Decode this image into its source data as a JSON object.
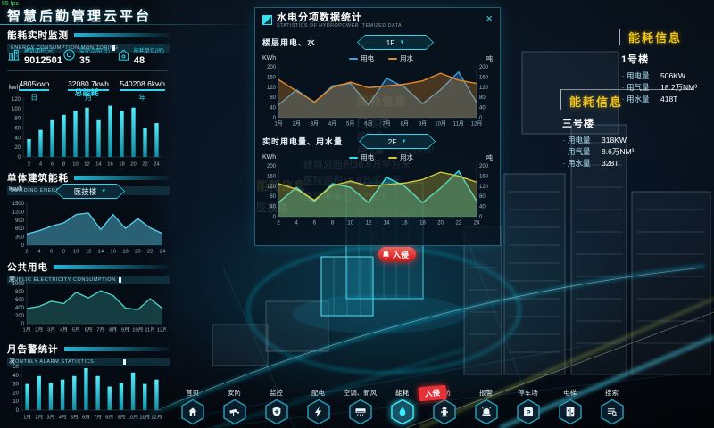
{
  "meta": {
    "fps": "55 fps",
    "title": "智慧后勤管理云平台"
  },
  "left": {
    "monitor_title": "能耗实时监测",
    "monitor_sub": "ENERGY CONSUMPTION MONITORING",
    "stats": [
      {
        "icon": "building-area-icon",
        "label": "建筑面积(㎡)",
        "value": "9012501"
      },
      {
        "icon": "monitor-points-icon",
        "label": "监控点用(台)",
        "value": "35"
      },
      {
        "icon": "energy-units-icon",
        "label": "能耗单位(间)",
        "value": "48"
      }
    ],
    "totals": [
      {
        "value": "4805kwh",
        "period": "日"
      },
      {
        "value": "32080.7kwh",
        "period": "月"
      },
      {
        "value": "540208.6kwh",
        "period": "年"
      }
    ],
    "total_energy_title": "总能耗",
    "total_energy_unit": "kwh",
    "building_title": "单体建筑能耗",
    "building_sub": "BUILDING ENERGY CONSUMPTION",
    "building_unit": "Kw/h",
    "building_select": "医技楼",
    "public_title": "公共用电",
    "public_sub": "PUBLIC ELECTRICITY CONSUMPTION",
    "public_unit": "度",
    "alarm_title": "月告警统计",
    "alarm_sub": "MONTHLY ALARM STATISTICS",
    "alarm_unit": "次"
  },
  "modal": {
    "title": "水电分项数据统计",
    "subtitle": "STATISTICS OF HYDROPOWER ITEMIZED DATA",
    "close": "×",
    "section1": {
      "label": "楼层用电、水",
      "select": "1F",
      "unit_left": "KWh",
      "unit_right": "吨"
    },
    "section2": {
      "label": "实时用电量、用水量",
      "select": "2F",
      "unit_left": "KWh",
      "unit_right": "吨"
    }
  },
  "right_panels": [
    {
      "title": "能耗信息",
      "building": "1号楼",
      "rows": [
        {
          "label": "用电量",
          "value": "506KW"
        },
        {
          "label": "用气量",
          "value": "18.2万NM³"
        },
        {
          "label": "用水量",
          "value": "418T"
        }
      ]
    },
    {
      "title": "能耗信息",
      "building": "三号楼",
      "rows": [
        {
          "label": "用电量",
          "value": "318KW"
        },
        {
          "label": "用气量",
          "value": "8.6万NM³"
        },
        {
          "label": "用水量",
          "value": "328T"
        }
      ]
    }
  ],
  "scene": {
    "intrusion_button": "入侵",
    "ghost_labels": [
      {
        "title": "能耗信息",
        "name": "门诊楼",
        "rows": [
          [
            "用电量",
            "525KW"
          ],
          [
            "用气量",
            "21万NM³"
          ]
        ]
      },
      {
        "lines": [
          "建筑总面积36.6万平方米",
          "医院面积18.9万平方米",
          "室外停车位：210个"
        ]
      },
      {
        "title": "能耗信息",
        "name": "医技楼"
      }
    ]
  },
  "nav": {
    "alert_badge": "入侵",
    "items": [
      {
        "label": "首页",
        "icon": "home-icon"
      },
      {
        "label": "安防",
        "icon": "camera-icon"
      },
      {
        "label": "监控",
        "icon": "shield-icon"
      },
      {
        "label": "配电",
        "icon": "bolt-icon"
      },
      {
        "label": "空调、新风",
        "icon": "ac-icon"
      },
      {
        "label": "能耗",
        "icon": "water-drop-icon",
        "active": true
      },
      {
        "label": "消防",
        "icon": "hydrant-icon"
      },
      {
        "label": "报警",
        "icon": "alarm-icon"
      },
      {
        "label": "停车场",
        "icon": "parking-icon"
      },
      {
        "label": "电梯",
        "icon": "elevator-icon"
      },
      {
        "label": "搜索",
        "icon": "search-icon"
      }
    ]
  },
  "colors": {
    "accent": "#2fd8f0",
    "bar_top": "#52eefc",
    "bar_bottom": "#128aa0",
    "blue": "#3fa0e0",
    "orange": "#e08a2a",
    "cyan": "#30e0e6",
    "yellow_line": "#d4c83a",
    "panel_title": "#f0c419",
    "alert": "#e53238"
  },
  "chart_data": [
    {
      "id": "total_energy",
      "type": "bar",
      "title": "总能耗",
      "ylabel": "kwh",
      "ylim": [
        0,
        120
      ],
      "yticks": [
        0,
        20,
        40,
        60,
        80,
        100,
        120
      ],
      "categories": [
        "2",
        "4",
        "6",
        "8",
        "10",
        "12",
        "14",
        "16",
        "18",
        "20",
        "22",
        "24"
      ],
      "values": [
        37,
        56,
        76,
        87,
        96,
        102,
        76,
        106,
        96,
        102,
        60,
        70
      ]
    },
    {
      "id": "building_energy",
      "type": "area",
      "title": "单体建筑能耗",
      "ylabel": "Kw/h",
      "selected_building": "医技楼",
      "ylim": [
        0,
        1500
      ],
      "yticks": [
        0,
        300,
        600,
        900,
        1200,
        1500
      ],
      "categories": [
        "2",
        "4",
        "6",
        "8",
        "10",
        "12",
        "14",
        "16",
        "18",
        "20",
        "22",
        "24"
      ],
      "values": [
        400,
        520,
        680,
        800,
        1100,
        1150,
        560,
        1100,
        600,
        950,
        620,
        420
      ],
      "color": "#56c8e8",
      "fill_opacity": 0.45
    },
    {
      "id": "public_power",
      "type": "area",
      "title": "公共用电",
      "ylabel": "度",
      "ylim": [
        0,
        1000
      ],
      "yticks": [
        0,
        200,
        400,
        600,
        800,
        1000
      ],
      "categories": [
        "1月",
        "2月",
        "3月",
        "4月",
        "5月",
        "6月",
        "7月",
        "8月",
        "9月",
        "10月",
        "11月",
        "12月"
      ],
      "values": [
        380,
        430,
        560,
        500,
        780,
        640,
        820,
        700,
        390,
        350,
        620,
        380
      ],
      "color": "#49d0c8",
      "fill_opacity": 0.25
    },
    {
      "id": "monthly_alarms",
      "type": "bar",
      "title": "月告警统计",
      "ylabel": "次",
      "ylim": [
        0,
        50
      ],
      "yticks": [
        0,
        10,
        20,
        30,
        40,
        50
      ],
      "categories": [
        "1月",
        "2月",
        "3月",
        "4月",
        "5月",
        "6月",
        "7月",
        "8月",
        "9月",
        "10月",
        "11月",
        "12月"
      ],
      "values": [
        30,
        39,
        31,
        35,
        39,
        48,
        39,
        27,
        31,
        43,
        30,
        35
      ]
    },
    {
      "id": "floor_usage",
      "type": "line",
      "title": "楼层用电、水",
      "selected_floor": "1F",
      "ylabel": "KWh",
      "y2label": "吨",
      "right_axis": true,
      "ylim": [
        0,
        200
      ],
      "yticks": [
        0,
        40,
        80,
        120,
        160,
        200
      ],
      "categories": [
        "1月",
        "2月",
        "3月",
        "4月",
        "5月",
        "6月",
        "7月",
        "8月",
        "9月",
        "10月",
        "11月",
        "12月"
      ],
      "series": [
        {
          "name": "用电",
          "color": "#3fa0e0",
          "values": [
            50,
            110,
            60,
            125,
            135,
            50,
            155,
            120,
            55,
            110,
            180,
            60
          ]
        },
        {
          "name": "用水",
          "color": "#e08a2a",
          "values": [
            150,
            105,
            62,
            120,
            140,
            118,
            125,
            132,
            145,
            175,
            148,
            135
          ]
        }
      ]
    },
    {
      "id": "realtime_usage",
      "type": "line",
      "title": "实时用电量、用水量",
      "selected_floor": "2F",
      "ylabel": "KWh",
      "y2label": "吨",
      "right_axis": true,
      "ylim": [
        0,
        200
      ],
      "yticks": [
        0,
        40,
        80,
        120,
        160,
        200
      ],
      "categories": [
        "2",
        "4",
        "6",
        "8",
        "10",
        "12",
        "14",
        "16",
        "18",
        "20",
        "22",
        "24"
      ],
      "series": [
        {
          "name": "用电",
          "color": "#30e0e6",
          "values": [
            55,
            115,
            60,
            130,
            115,
            55,
            155,
            120,
            55,
            112,
            180,
            62
          ]
        },
        {
          "name": "用水",
          "color": "#d4c83a",
          "values": [
            130,
            108,
            65,
            122,
            140,
            120,
            126,
            132,
            146,
            175,
            160,
            136
          ]
        }
      ]
    }
  ]
}
